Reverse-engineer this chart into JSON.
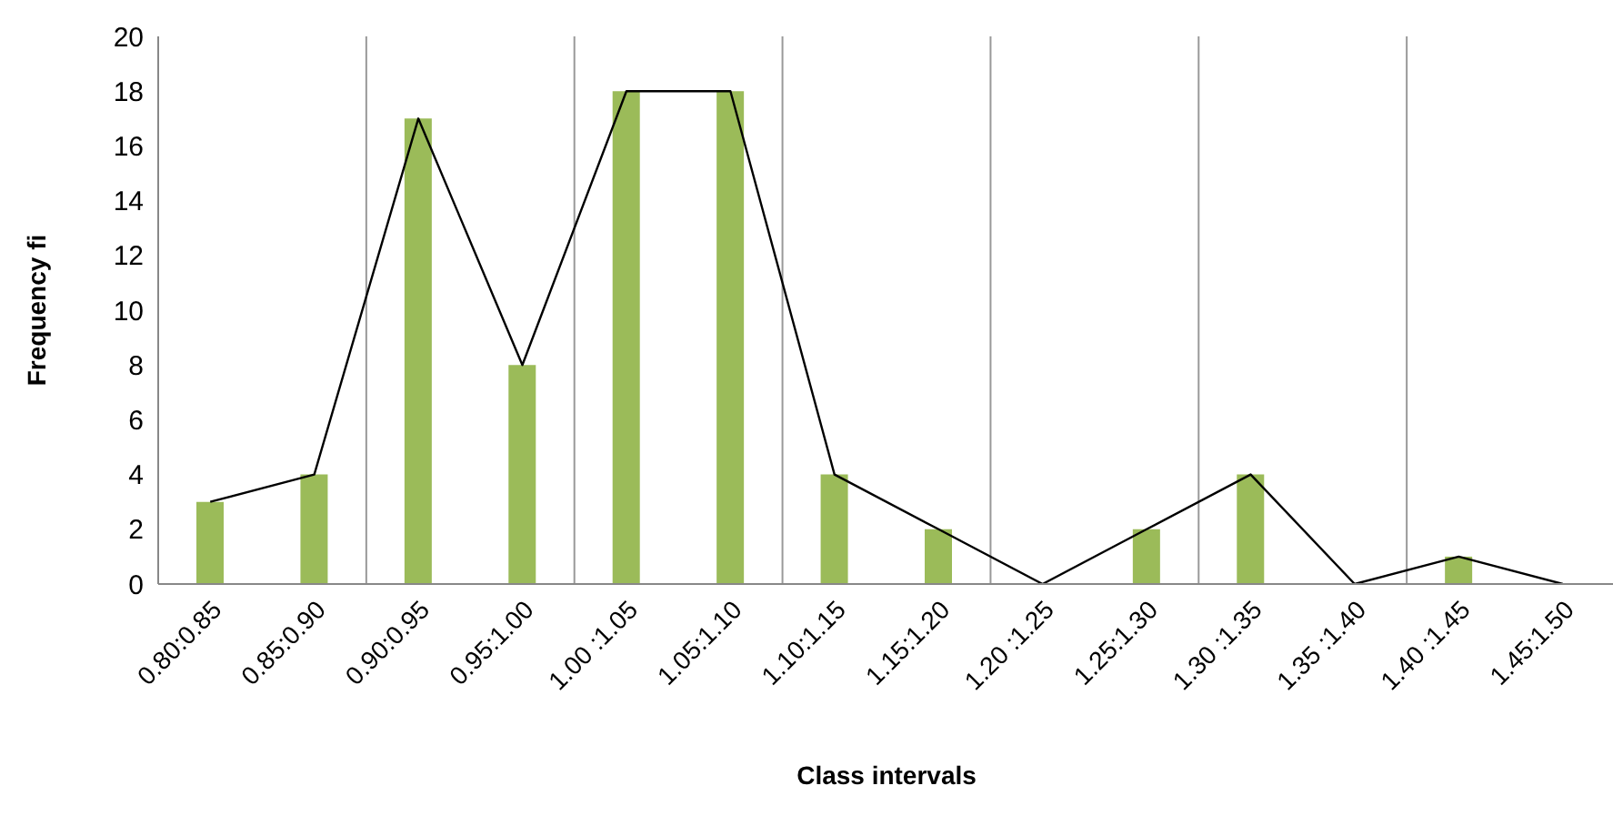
{
  "chart_data": {
    "type": "bar",
    "xlabel": "Class intervals",
    "ylabel": "Frequency fi",
    "categories": [
      "0.80:0.85",
      "0.85:0.90",
      "0.90:0.95",
      "0.95:1.00",
      "1.00 :1.05",
      "1.05:1.10",
      "1.10:1.15",
      "1.15:1.20",
      "1.20 :1.25",
      "1.25:1.30",
      "1.30 :1.35",
      "1.35 :1.40",
      "1.40 :1.45",
      "1.45:1.50"
    ],
    "series": [
      {
        "color": "#9bbb59",
        "values": [
          3,
          4,
          17,
          8,
          18,
          18,
          4,
          2,
          0,
          2,
          4,
          0,
          1,
          0
        ]
      },
      {
        "type": "line",
        "color": "#000000",
        "values": [
          3,
          4,
          17,
          8,
          18,
          18,
          4,
          2,
          0,
          2,
          4,
          0,
          1,
          0
        ]
      }
    ],
    "ylim": [
      0,
      20
    ],
    "yticks": [
      0,
      2,
      4,
      6,
      8,
      10,
      12,
      14,
      16,
      18,
      20
    ],
    "grid": "x",
    "marker": "none"
  }
}
